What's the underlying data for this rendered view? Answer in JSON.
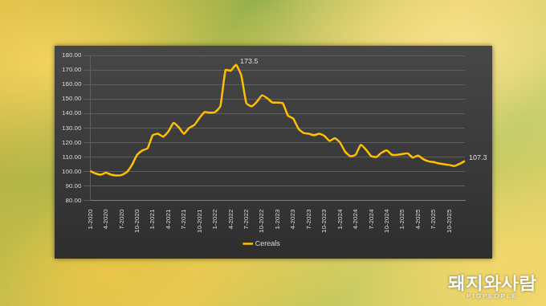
{
  "chart_data": {
    "type": "line",
    "categories": [
      "1-2020",
      null,
      null,
      "4-2020",
      null,
      null,
      "7-2020",
      null,
      null,
      "10-2020",
      null,
      null,
      "1-2021",
      null,
      null,
      "4-2021",
      null,
      null,
      "7-2021",
      null,
      null,
      "10-2021",
      null,
      null,
      "1-2022",
      null,
      null,
      "4-2022",
      null,
      null,
      "7-2022",
      null,
      null,
      "10-2022",
      null,
      null,
      "1-2023",
      null,
      null,
      "4-2023",
      null,
      null,
      "7-2023",
      null,
      null,
      "10-2023",
      null,
      null,
      "1-2024",
      null,
      null,
      "4-2024",
      null,
      null,
      "7-2024",
      null,
      null,
      "10-2024",
      null,
      null,
      "1-2025",
      null,
      null,
      "4-2025",
      null,
      null,
      "7-2025",
      null,
      null,
      "10-2025",
      null,
      null,
      null
    ],
    "series": [
      {
        "name": "Cereals",
        "color": "#ffc000",
        "values": [
          100.3,
          98.6,
          97.8,
          99.2,
          97.8,
          97.3,
          97.6,
          99.5,
          104.5,
          111.5,
          114.5,
          116,
          125,
          126,
          124,
          127.5,
          133.5,
          130.5,
          126,
          130,
          132,
          137,
          141,
          140.5,
          141,
          145,
          170,
          169.5,
          173.5,
          166.5,
          147,
          145,
          148,
          152.5,
          150.5,
          147.5,
          147.5,
          147,
          138.5,
          136.5,
          129.5,
          126.5,
          126,
          125,
          126,
          124.5,
          121,
          123,
          120,
          113.5,
          110.5,
          111.5,
          118.5,
          115,
          110.5,
          110,
          113,
          114.5,
          111.5,
          111.5,
          112,
          112.5,
          109.5,
          111,
          108.5,
          107,
          106.5,
          105.5,
          105,
          104.5,
          103.8,
          105.3,
          107.3
        ]
      }
    ],
    "ylim": [
      80,
      180
    ],
    "yticks": [
      {
        "value": 80,
        "label": "80.00"
      },
      {
        "value": 90,
        "label": "90.00"
      },
      {
        "value": 100,
        "label": "100.00"
      },
      {
        "value": 110,
        "label": "110.00"
      },
      {
        "value": 120,
        "label": "120.00"
      },
      {
        "value": 130,
        "label": "130.00"
      },
      {
        "value": 140,
        "label": "140.00"
      },
      {
        "value": 150,
        "label": "150.00"
      },
      {
        "value": 160,
        "label": "160.00"
      },
      {
        "value": 170,
        "label": "170.00"
      },
      {
        "value": 180,
        "label": "180.00"
      }
    ],
    "grid": true,
    "legend": "bottom",
    "annotations": [
      {
        "label": "173.5",
        "value": 173.5
      },
      {
        "label": "107.3",
        "value": 107.3
      }
    ],
    "watermark": {
      "title": "돼지와사람",
      "subtitle": "PIGPEOPLE"
    }
  }
}
